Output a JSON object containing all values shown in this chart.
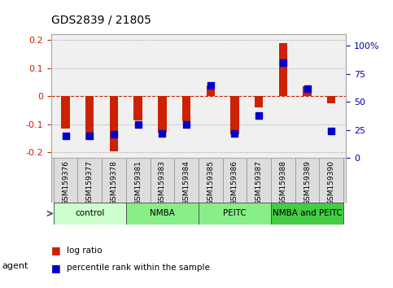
{
  "title": "GDS2839 / 21805",
  "samples": [
    "GSM159376",
    "GSM159377",
    "GSM159378",
    "GSM159381",
    "GSM159383",
    "GSM159384",
    "GSM159385",
    "GSM159386",
    "GSM159387",
    "GSM159388",
    "GSM159389",
    "GSM159390"
  ],
  "log_ratio": [
    -0.115,
    -0.155,
    -0.195,
    -0.085,
    -0.13,
    -0.09,
    0.04,
    -0.135,
    -0.04,
    0.19,
    0.035,
    -0.025
  ],
  "percentile_rank": [
    20,
    20,
    21,
    30,
    22,
    30,
    65,
    22,
    38,
    85,
    62,
    24
  ],
  "groups": [
    {
      "label": "control",
      "start": 0,
      "end": 2,
      "color": "#ccffcc"
    },
    {
      "label": "NMBA",
      "start": 3,
      "end": 5,
      "color": "#88ee88"
    },
    {
      "label": "PEITC",
      "start": 6,
      "end": 8,
      "color": "#88ee88"
    },
    {
      "label": "NMBA and PEITC",
      "start": 9,
      "end": 11,
      "color": "#44cc44"
    }
  ],
  "group_colors": [
    "#ccffcc",
    "#88ee88",
    "#88ee88",
    "#44cc44"
  ],
  "ylim": [
    -0.22,
    0.22
  ],
  "y2lim": [
    0,
    110
  ],
  "yticks": [
    -0.2,
    -0.1,
    0,
    0.1,
    0.2
  ],
  "ytick_labels": [
    "-0.2",
    "-0.1",
    "0",
    "0.1",
    "0.2"
  ],
  "y2ticks": [
    0,
    25,
    50,
    75,
    100
  ],
  "y2tick_labels": [
    "0",
    "25",
    "50",
    "75",
    "100%"
  ],
  "bar_color": "#cc2200",
  "dot_color": "#0000cc",
  "grid_color": "#888888",
  "zero_line_color": "#cc2200",
  "bg_color": "#ffffff",
  "plot_bg": "#f0f0f0",
  "sample_bg": "#dddddd",
  "title_color": "#000000",
  "ytick_color": "#cc2200",
  "y2tick_color": "#0000aa"
}
